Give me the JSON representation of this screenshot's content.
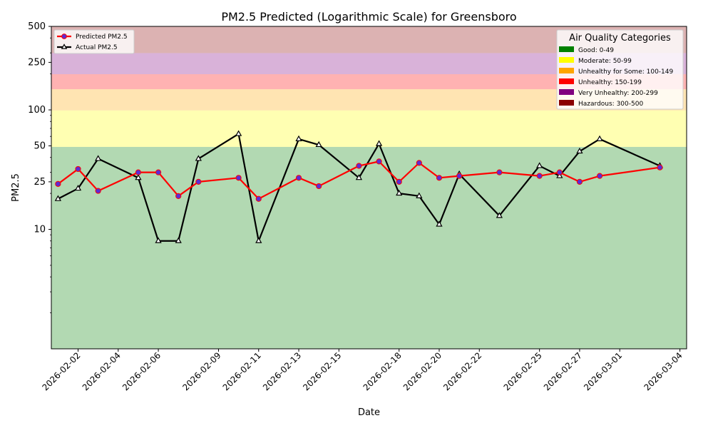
{
  "chart_data": {
    "type": "line",
    "title": "PM2.5 Predicted (Logarithmic Scale) for Greensboro",
    "xlabel": "Date",
    "ylabel": "PM2.5",
    "yscale": "log",
    "ylim": [
      1,
      500
    ],
    "xlim": [
      "2026-01-31T16:00",
      "2026-03-04T08:00"
    ],
    "xticks": [
      "2026-02-02",
      "2026-02-04",
      "2026-02-06",
      "2026-02-09",
      "2026-02-11",
      "2026-02-13",
      "2026-02-15",
      "2026-02-18",
      "2026-02-20",
      "2026-02-22",
      "2026-02-25",
      "2026-02-27",
      "2026-03-01",
      "2026-03-04"
    ],
    "yticks": [
      10,
      25,
      50,
      100,
      250,
      500
    ],
    "bands": [
      {
        "label": "Good: 0-49",
        "min": 1,
        "max": 49,
        "color": "#008000"
      },
      {
        "label": "Moderate: 50-99",
        "min": 49,
        "max": 99,
        "color": "#ffff00"
      },
      {
        "label": "Unhealthy for Some: 100-149",
        "min": 99,
        "max": 149,
        "color": "#ffa500"
      },
      {
        "label": "Unhealthy: 150-199",
        "min": 149,
        "max": 199,
        "color": "#ff0000"
      },
      {
        "label": "Very Unhealthy: 200-299",
        "min": 199,
        "max": 299,
        "color": "#800080"
      },
      {
        "label": "Hazardous: 300-500",
        "min": 299,
        "max": 500,
        "color": "#8b0000"
      }
    ],
    "band_legend_title": "Air Quality Categories",
    "series": [
      {
        "name": "Predicted PM2.5",
        "color": "#ff0000",
        "marker": "circle",
        "marker_fill": "#5b2bd6",
        "points": [
          [
            "2026-02-01",
            24
          ],
          [
            "2026-02-02",
            32
          ],
          [
            "2026-02-03",
            21
          ],
          [
            "2026-02-05",
            30
          ],
          [
            "2026-02-06",
            30
          ],
          [
            "2026-02-07",
            19
          ],
          [
            "2026-02-08",
            25
          ],
          [
            "2026-02-10",
            27
          ],
          [
            "2026-02-11",
            18
          ],
          [
            "2026-02-13",
            27
          ],
          [
            "2026-02-14",
            23
          ],
          [
            "2026-02-16",
            34
          ],
          [
            "2026-02-17",
            37
          ],
          [
            "2026-02-18",
            25
          ],
          [
            "2026-02-19",
            36
          ],
          [
            "2026-02-20",
            27
          ],
          [
            "2026-02-21",
            28
          ],
          [
            "2026-02-23",
            30
          ],
          [
            "2026-02-25",
            28
          ],
          [
            "2026-02-26",
            30
          ],
          [
            "2026-02-27",
            25
          ],
          [
            "2026-02-28",
            28
          ],
          [
            "2026-03-03",
            33
          ]
        ]
      },
      {
        "name": "Actual PM2.5",
        "color": "#000000",
        "marker": "triangle",
        "marker_fill": "#ffffff",
        "points": [
          [
            "2026-02-01",
            18
          ],
          [
            "2026-02-02",
            22
          ],
          [
            "2026-02-03",
            39
          ],
          [
            "2026-02-05",
            27
          ],
          [
            "2026-02-06",
            8
          ],
          [
            "2026-02-07",
            8
          ],
          [
            "2026-02-08",
            39
          ],
          [
            "2026-02-10",
            63
          ],
          [
            "2026-02-11",
            8
          ],
          [
            "2026-02-13",
            57
          ],
          [
            "2026-02-14",
            51
          ],
          [
            "2026-02-16",
            27
          ],
          [
            "2026-02-17",
            52
          ],
          [
            "2026-02-18",
            20
          ],
          [
            "2026-02-19",
            19
          ],
          [
            "2026-02-20",
            11
          ],
          [
            "2026-02-21",
            29
          ],
          [
            "2026-02-23",
            13
          ],
          [
            "2026-02-25",
            34
          ],
          [
            "2026-02-26",
            28
          ],
          [
            "2026-02-27",
            45
          ],
          [
            "2026-02-28",
            57
          ],
          [
            "2026-03-03",
            34
          ]
        ]
      }
    ]
  }
}
